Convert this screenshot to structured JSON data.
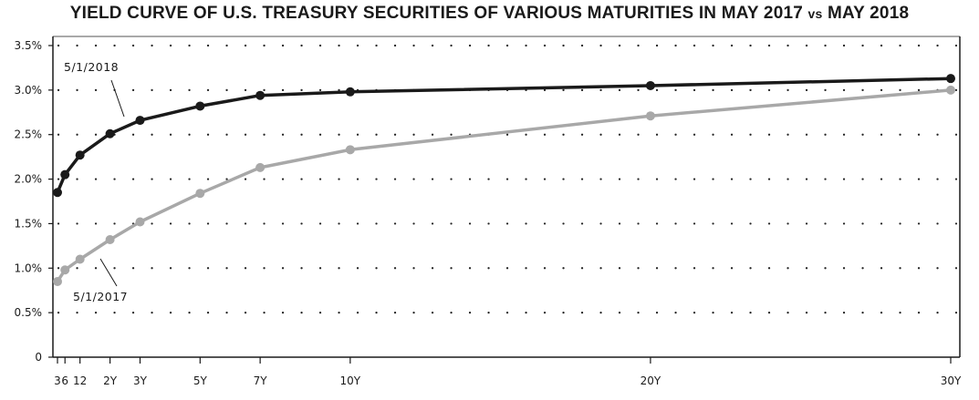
{
  "title_main": "YIELD CURVE OF U.S. TREASURY SECURITIES OF VARIOUS MATURITIES IN MAY 2017",
  "title_vs": "vs",
  "title_tail": "MAY 2018",
  "chart_data": {
    "type": "line",
    "title": "YIELD CURVE OF U.S. TREASURY SECURITIES OF VARIOUS MATURITIES IN MAY 2017 vs MAY 2018",
    "x_months": [
      3,
      6,
      12,
      24,
      36,
      60,
      84,
      120,
      240,
      360
    ],
    "x_tick_labels": [
      "3",
      "6",
      "12",
      "2Y",
      "3Y",
      "5Y",
      "7Y",
      "10Y",
      "20Y",
      "30Y"
    ],
    "y_ticks": [
      0,
      0.5,
      1.0,
      1.5,
      2.0,
      2.5,
      3.0,
      3.5
    ],
    "y_tick_labels": [
      "0",
      "0.5%",
      "1.0%",
      "1.5%",
      "2.0%",
      "2.5%",
      "3.0%",
      "3.5%"
    ],
    "ylim": [
      0,
      3.5
    ],
    "grid": "dotted",
    "series": [
      {
        "name": "5/1/2018",
        "color": "#1a1a1a",
        "values": [
          1.85,
          2.05,
          2.27,
          2.51,
          2.66,
          2.82,
          2.94,
          2.98,
          3.05,
          3.13
        ]
      },
      {
        "name": "5/1/2017",
        "color": "#a8a8a8",
        "values": [
          0.85,
          0.98,
          1.1,
          1.32,
          1.52,
          1.84,
          2.13,
          2.33,
          2.71,
          3.0
        ]
      }
    ]
  }
}
